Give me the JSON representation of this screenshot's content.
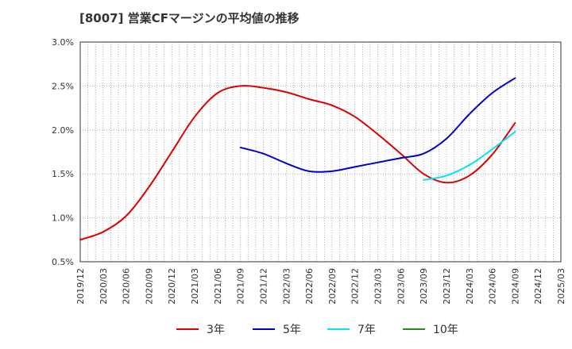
{
  "chart_data": {
    "type": "line",
    "title": "[8007]  営業CFマージンの平均値の推移",
    "ylim": [
      0.5,
      3.0
    ],
    "yticks": [
      "0.5%",
      "1.0%",
      "1.5%",
      "2.0%",
      "2.5%",
      "3.0%"
    ],
    "xticks": [
      "2019/12",
      "2020/03",
      "2020/06",
      "2020/09",
      "2020/12",
      "2021/03",
      "2021/06",
      "2021/09",
      "2021/12",
      "2022/03",
      "2022/06",
      "2022/09",
      "2022/12",
      "2023/03",
      "2023/06",
      "2023/09",
      "2023/12",
      "2024/03",
      "2024/06",
      "2024/09",
      "2024/12",
      "2025/03"
    ],
    "grid": true,
    "legend_position": "bottom",
    "series": [
      {
        "name": "3年",
        "color": "#dd0000",
        "points": [
          [
            "2019/12",
            0.75
          ],
          [
            "2020/03",
            0.84
          ],
          [
            "2020/06",
            1.02
          ],
          [
            "2020/09",
            1.35
          ],
          [
            "2020/12",
            1.75
          ],
          [
            "2021/03",
            2.15
          ],
          [
            "2021/06",
            2.42
          ],
          [
            "2021/09",
            2.5
          ],
          [
            "2021/12",
            2.48
          ],
          [
            "2022/03",
            2.43
          ],
          [
            "2022/06",
            2.35
          ],
          [
            "2022/09",
            2.28
          ],
          [
            "2022/12",
            2.15
          ],
          [
            "2023/03",
            1.95
          ],
          [
            "2023/06",
            1.73
          ],
          [
            "2023/09",
            1.5
          ],
          [
            "2023/12",
            1.4
          ],
          [
            "2024/03",
            1.48
          ],
          [
            "2024/06",
            1.72
          ],
          [
            "2024/09",
            2.08
          ]
        ]
      },
      {
        "name": "5年",
        "color": "#0000cc",
        "points": [
          [
            "2021/09",
            1.8
          ],
          [
            "2021/12",
            1.73
          ],
          [
            "2022/03",
            1.62
          ],
          [
            "2022/06",
            1.53
          ],
          [
            "2022/09",
            1.53
          ],
          [
            "2022/12",
            1.58
          ],
          [
            "2023/03",
            1.63
          ],
          [
            "2023/06",
            1.68
          ],
          [
            "2023/09",
            1.73
          ],
          [
            "2023/12",
            1.9
          ],
          [
            "2024/03",
            2.18
          ],
          [
            "2024/06",
            2.42
          ],
          [
            "2024/09",
            2.59
          ]
        ]
      },
      {
        "name": "7年",
        "color": "#00e5ee",
        "points": [
          [
            "2023/09",
            1.43
          ],
          [
            "2023/12",
            1.48
          ],
          [
            "2024/03",
            1.6
          ],
          [
            "2024/06",
            1.78
          ],
          [
            "2024/09",
            1.98
          ]
        ]
      },
      {
        "name": "10年",
        "color": "#228b22",
        "points": []
      }
    ]
  }
}
